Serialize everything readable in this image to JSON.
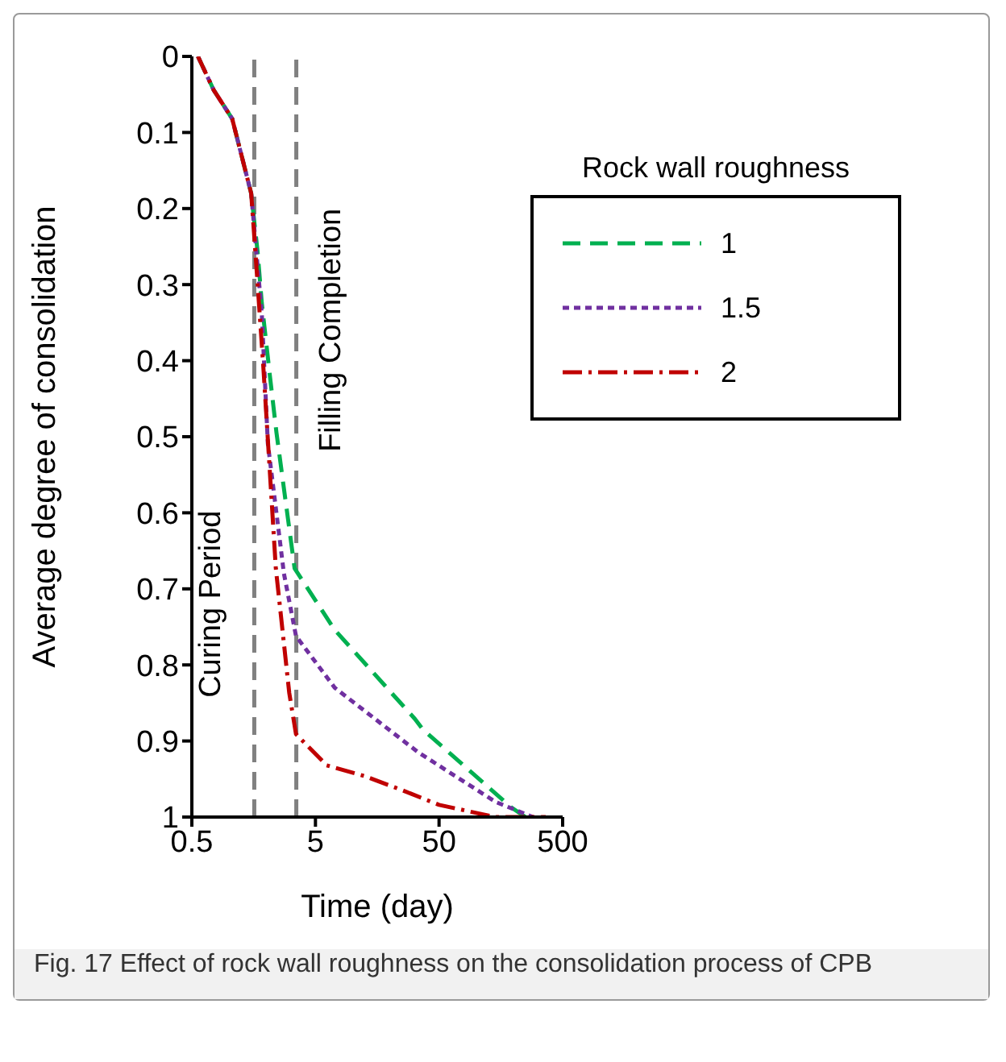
{
  "chart_data": {
    "type": "line",
    "xlabel": "Time (day)",
    "ylabel": "Average degree of consolidation",
    "legend_title": "Rock wall roughness",
    "log": "x",
    "xlim": [
      0.5,
      500
    ],
    "xticks": [
      0.5,
      5,
      50,
      500
    ],
    "ylim": [
      1,
      0
    ],
    "yticks": [
      0,
      0.1,
      0.2,
      0.3,
      0.4,
      0.5,
      0.6,
      0.7,
      0.8,
      0.9,
      1
    ],
    "grid": false,
    "legend": "top right",
    "marker": "none",
    "series": [
      {
        "name": "1",
        "color": "#00b050",
        "line_style": "dashed",
        "x": [
          0.56,
          0.75,
          1.06,
          1.51,
          1.7,
          1.84,
          2.14,
          2.42,
          3.39,
          7.16,
          31.9,
          37,
          191,
          250
        ],
        "values": [
          0,
          0.044,
          0.082,
          0.18,
          0.256,
          0.324,
          0.42,
          0.495,
          0.673,
          0.754,
          0.871,
          0.885,
          0.987,
          1
        ]
      },
      {
        "name": "1.5",
        "color": "#7030a0",
        "line_style": "dotted",
        "x": [
          0.56,
          0.75,
          1.06,
          1.51,
          1.84,
          2.06,
          2.78,
          3.48,
          7.16,
          34,
          143,
          288
        ],
        "values": [
          0,
          0.044,
          0.082,
          0.18,
          0.338,
          0.509,
          0.68,
          0.762,
          0.83,
          0.915,
          0.98,
          1
        ]
      },
      {
        "name": "2",
        "color": "#c00000",
        "line_style": "dashdot",
        "x": [
          0.56,
          0.75,
          1.06,
          1.51,
          1.62,
          1.89,
          1.96,
          2.39,
          3.07,
          3.48,
          6.16,
          12.4,
          23.7,
          50,
          143,
          365
        ],
        "values": [
          0,
          0.044,
          0.082,
          0.18,
          0.249,
          0.406,
          0.447,
          0.673,
          0.837,
          0.891,
          0.932,
          0.946,
          0.963,
          0.984,
          1,
          1
        ]
      }
    ],
    "ref_lines": [
      {
        "axis": "x",
        "value": 1.6,
        "label": "Curing Period",
        "color": "#808080",
        "line_style": "dashed"
      },
      {
        "axis": "x",
        "value": 3.5,
        "label": "Filling Completion",
        "color": "#808080",
        "line_style": "dashed"
      }
    ],
    "annotations": [
      "Fig. 17 Effect of rock wall roughness on the consolidation process of CPB"
    ]
  }
}
